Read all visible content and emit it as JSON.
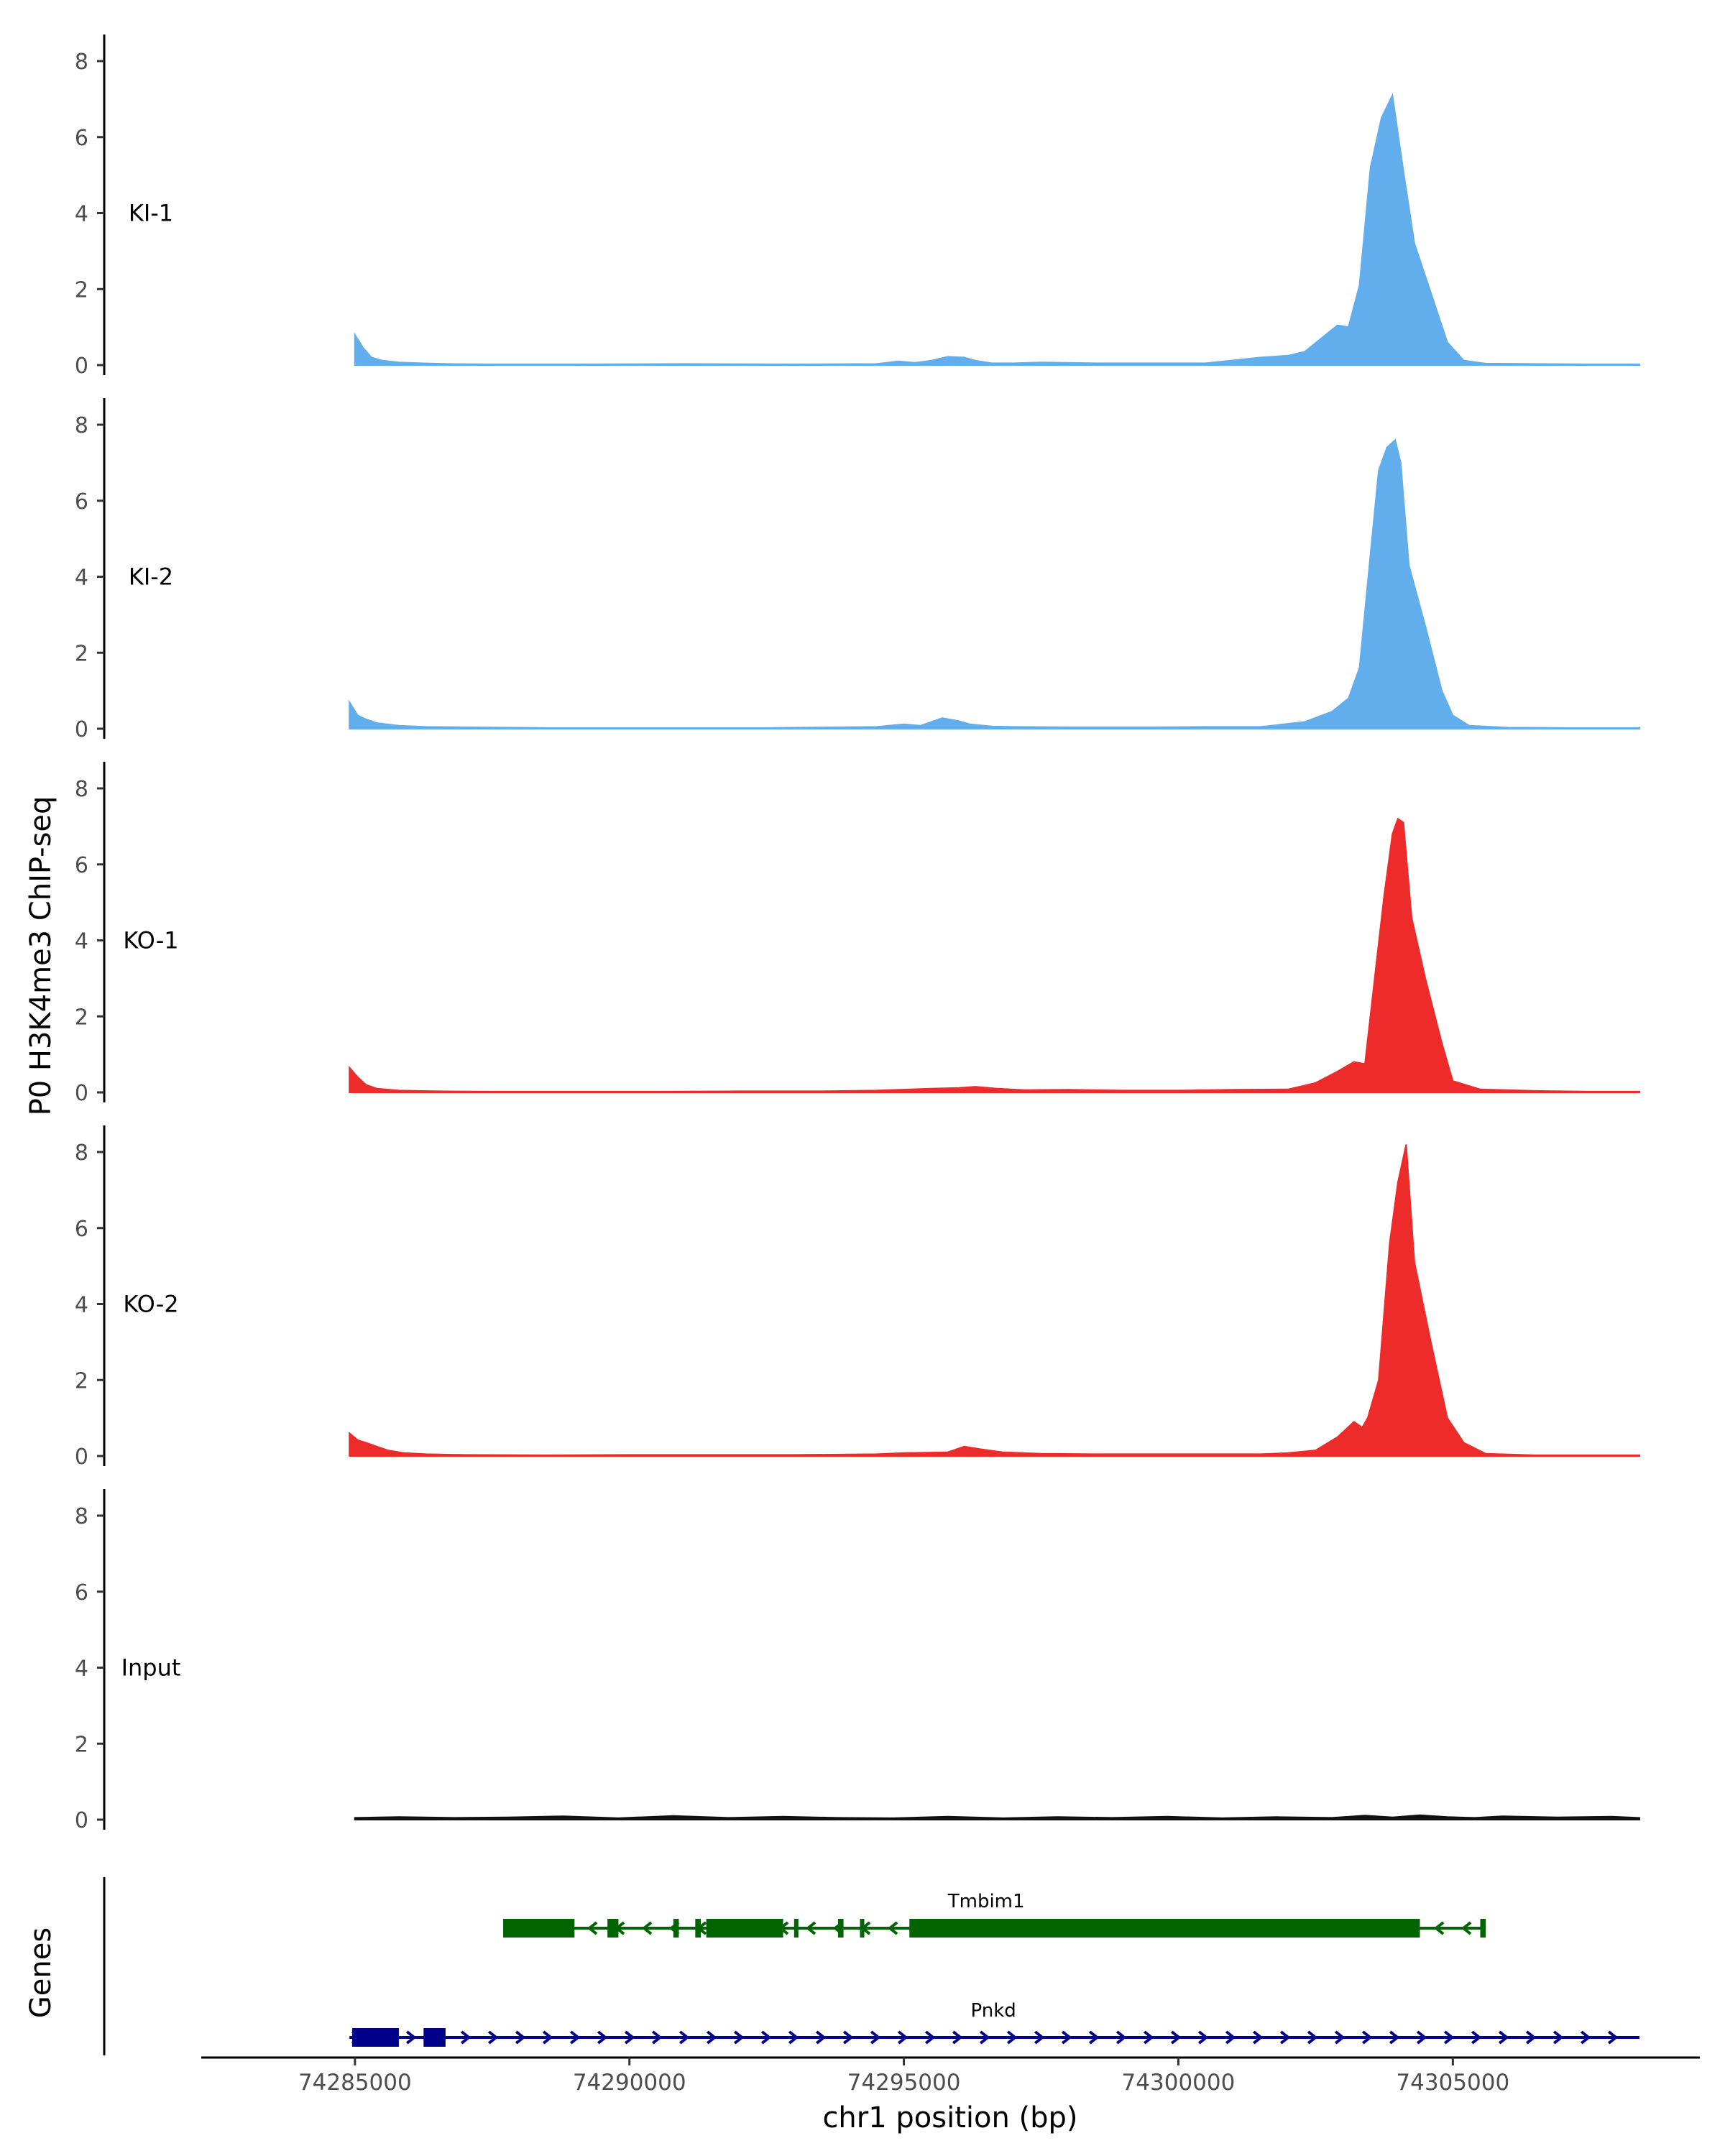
{
  "chart_data": {
    "type": "area",
    "ylabel": "P0 H3K4me3 ChIP-seq",
    "xlabel": "chr1 position (bp)",
    "genes_label": "Genes",
    "xlim": [
      74282200,
      74309500
    ],
    "ylim": [
      0,
      8.7
    ],
    "yticks": [
      0,
      2,
      4,
      6,
      8
    ],
    "xticks": [
      74285000,
      74290000,
      74295000,
      74300000,
      74305000
    ],
    "xtick_labels": [
      "74285000",
      "74290000",
      "74295000",
      "74300000",
      "74305000"
    ],
    "grid": false,
    "colors": {
      "KI": "#62aeec",
      "KO": "#ee2b2b",
      "Input": "#111111",
      "Tmbim1": "#006400",
      "Pnkd": "#00008b"
    },
    "tracks": [
      {
        "name": "KI-1",
        "color": "#62aeec",
        "x": [
          74285000,
          74285150,
          74285300,
          74285500,
          74285800,
          74286200,
          74286700,
          74287500,
          74289000,
          74291000,
          74293000,
          74294500,
          74294900,
          74295200,
          74295500,
          74295800,
          74296100,
          74296300,
          74296600,
          74297000,
          74297500,
          74298500,
          74299500,
          74300500,
          74301500,
          74302000,
          74302300,
          74302600,
          74302900,
          74303100,
          74303300,
          74303500,
          74303700,
          74303900,
          74304100,
          74304300,
          74304600,
          74304900,
          74305200,
          74305600,
          74306500,
          74307500,
          74308400
        ],
        "values": [
          0.8,
          0.45,
          0.2,
          0.12,
          0.07,
          0.05,
          0.03,
          0.02,
          0.02,
          0.03,
          0.02,
          0.03,
          0.1,
          0.06,
          0.12,
          0.22,
          0.2,
          0.12,
          0.05,
          0.05,
          0.07,
          0.05,
          0.05,
          0.05,
          0.2,
          0.25,
          0.35,
          0.7,
          1.05,
          1.0,
          2.1,
          5.2,
          6.5,
          7.1,
          5.1,
          3.2,
          1.9,
          0.6,
          0.12,
          0.04,
          0.03,
          0.02,
          0.02
        ]
      },
      {
        "name": "KI-2",
        "color": "#62aeec",
        "x": [
          74284900,
          74285050,
          74285200,
          74285400,
          74285800,
          74286300,
          74287000,
          74288500,
          74290500,
          74292500,
          74294500,
          74295000,
          74295300,
          74295700,
          74296000,
          74296200,
          74296600,
          74297000,
          74298000,
          74299500,
          74300500,
          74301500,
          74302300,
          74302800,
          74303100,
          74303300,
          74303500,
          74303650,
          74303800,
          74303950,
          74304050,
          74304200,
          74304500,
          74304800,
          74305000,
          74305300,
          74306000,
          74307000,
          74308400
        ],
        "values": [
          0.7,
          0.35,
          0.25,
          0.15,
          0.08,
          0.05,
          0.04,
          0.02,
          0.02,
          0.02,
          0.05,
          0.12,
          0.08,
          0.28,
          0.2,
          0.12,
          0.06,
          0.05,
          0.04,
          0.04,
          0.05,
          0.05,
          0.18,
          0.45,
          0.8,
          1.6,
          4.6,
          6.8,
          7.4,
          7.6,
          7.0,
          4.3,
          2.7,
          1.0,
          0.35,
          0.08,
          0.03,
          0.02,
          0.02
        ]
      },
      {
        "name": "KO-1",
        "color": "#ee2b2b",
        "x": [
          74284900,
          74285050,
          74285200,
          74285400,
          74285800,
          74286500,
          74287500,
          74289000,
          74290500,
          74292000,
          74293500,
          74294500,
          74295500,
          74296000,
          74296300,
          74296700,
          74297200,
          74298000,
          74299000,
          74300000,
          74301000,
          74302000,
          74302500,
          74302900,
          74303200,
          74303400,
          74303600,
          74303750,
          74303900,
          74304000,
          74304100,
          74304250,
          74304500,
          74304800,
          74305000,
          74305500,
          74306500,
          74307500,
          74308400
        ],
        "values": [
          0.65,
          0.4,
          0.2,
          0.1,
          0.05,
          0.03,
          0.02,
          0.02,
          0.02,
          0.03,
          0.03,
          0.05,
          0.1,
          0.12,
          0.15,
          0.1,
          0.06,
          0.07,
          0.05,
          0.05,
          0.07,
          0.08,
          0.25,
          0.55,
          0.8,
          0.75,
          3.3,
          5.2,
          6.8,
          7.2,
          7.1,
          4.6,
          3.0,
          1.3,
          0.3,
          0.08,
          0.04,
          0.02,
          0.02
        ]
      },
      {
        "name": "KO-2",
        "color": "#ee2b2b",
        "x": [
          74284900,
          74285050,
          74285200,
          74285400,
          74285600,
          74285900,
          74286300,
          74287000,
          74288500,
          74290000,
          74291500,
          74293000,
          74294500,
          74295000,
          74295800,
          74296100,
          74296400,
          74296800,
          74297500,
          74298500,
          74299500,
          74300500,
          74301500,
          74302000,
          74302500,
          74302900,
          74303200,
          74303350,
          74303450,
          74303650,
          74303850,
          74304000,
          74304150,
          74304300,
          74304600,
          74304900,
          74305200,
          74305600,
          74306500,
          74307500,
          74308400
        ],
        "values": [
          0.6,
          0.42,
          0.35,
          0.25,
          0.15,
          0.08,
          0.05,
          0.03,
          0.02,
          0.03,
          0.03,
          0.03,
          0.05,
          0.08,
          0.1,
          0.25,
          0.18,
          0.1,
          0.06,
          0.05,
          0.05,
          0.05,
          0.05,
          0.08,
          0.15,
          0.5,
          0.9,
          0.75,
          1.0,
          2.0,
          5.6,
          7.2,
          8.2,
          5.1,
          3.0,
          1.0,
          0.35,
          0.06,
          0.02,
          0.02,
          0.02
        ]
      },
      {
        "name": "Input",
        "color": "#111111",
        "x": [
          74285000,
          74285800,
          74286800,
          74287800,
          74288800,
          74289800,
          74290800,
          74291800,
          74292800,
          74293800,
          74294800,
          74295800,
          74296800,
          74297800,
          74298800,
          74299800,
          74300800,
          74301800,
          74302800,
          74303400,
          74303900,
          74304400,
          74304900,
          74305400,
          74305900,
          74306900,
          74307900,
          74308400
        ],
        "values": [
          0.05,
          0.07,
          0.05,
          0.06,
          0.09,
          0.04,
          0.1,
          0.05,
          0.08,
          0.05,
          0.04,
          0.08,
          0.04,
          0.07,
          0.05,
          0.08,
          0.04,
          0.07,
          0.05,
          0.11,
          0.06,
          0.12,
          0.07,
          0.05,
          0.09,
          0.06,
          0.08,
          0.05
        ]
      }
    ],
    "genes": [
      {
        "name": "Tmbim1",
        "strand": "-",
        "color": "#006400",
        "start": 74287700,
        "end": 74305600,
        "exons": [
          [
            74287700,
            74289000
          ],
          [
            74289600,
            74289800
          ],
          [
            74290800,
            74290900
          ],
          [
            74291200,
            74291300
          ],
          [
            74291400,
            74292800
          ],
          [
            74293000,
            74293050
          ],
          [
            74293800,
            74293900
          ],
          [
            74294200,
            74294250
          ],
          [
            74295100,
            74304400
          ],
          [
            74305500,
            74305600
          ]
        ]
      },
      {
        "name": "Pnkd",
        "strand": "+",
        "color": "#00008b",
        "start": 74284900,
        "end": 74308400,
        "exons": [
          [
            74284950,
            74285800
          ],
          [
            74286250,
            74286650
          ]
        ]
      }
    ]
  }
}
